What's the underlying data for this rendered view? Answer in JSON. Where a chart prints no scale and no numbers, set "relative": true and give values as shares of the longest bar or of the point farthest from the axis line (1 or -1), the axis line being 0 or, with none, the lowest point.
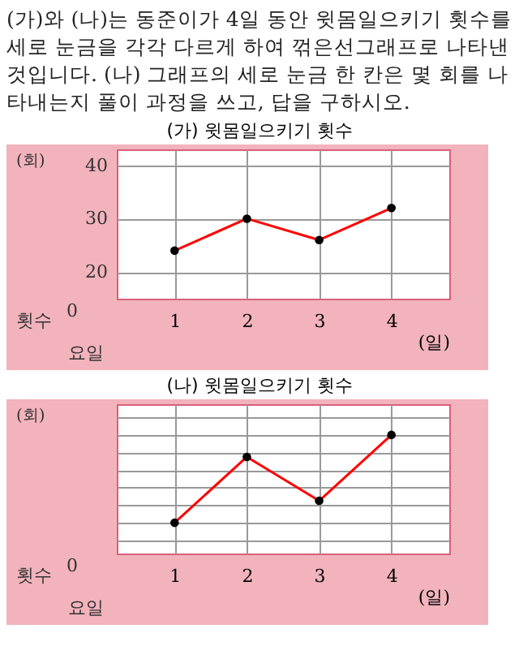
{
  "chart_data": [
    {
      "type": "other",
      "annotations": [
        "(가)와 (나)는 동준이가 4일 동안 윗몸일으키기 횟수를 세로 눈금을 각각 다르게 하여 꺾은선그래프로 나타낸 것입니다. (나) 그래프의 세로 눈금 한 칸은 몇 회를 나타내는지 풀이 과정을 쓰고, 답을 구하시오."
      ]
    },
    {
      "type": "line",
      "title": "(가) 윗몸일으키기 횟수",
      "ylabel": "(회)",
      "xlabel": "(일)",
      "categories": [
        "1",
        "2",
        "3",
        "4"
      ],
      "series": [
        {
          "color": "#ff0000",
          "values": [
            24,
            30,
            26,
            32
          ]
        }
      ],
      "ylim": [
        15,
        43
      ],
      "yticks": [
        20,
        30,
        40
      ],
      "grid": true,
      "marker": "circle",
      "annotations": [
        "0",
        "횟수",
        "요일"
      ]
    },
    {
      "type": "line",
      "title": "(나) 윗몸일으키기 횟수",
      "ylabel": "(회)",
      "xlabel": "(일)",
      "categories": [
        "1",
        "2",
        "3",
        "4"
      ],
      "relative": true,
      "series": [
        {
          "color": "#ff0000",
          "values": [
            0,
            0.75,
            0.25,
            1
          ]
        }
      ],
      "grid": true,
      "marker": "circle",
      "annotations": [
        "0",
        "횟수",
        "요일"
      ]
    }
  ]
}
